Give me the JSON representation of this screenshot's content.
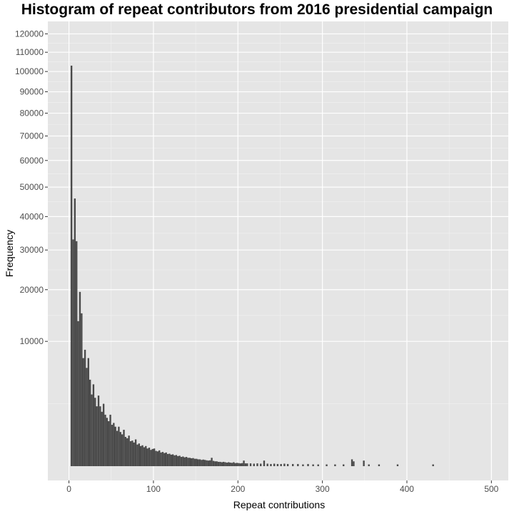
{
  "chart_data": {
    "type": "bar",
    "title": "Histogram of repeat contributors from 2016 presidential campaign",
    "xlabel": "Repeat contributions",
    "ylabel": "Frequency",
    "xlim": [
      -25,
      520
    ],
    "x_ticks": [
      0,
      100,
      200,
      300,
      400,
      500
    ],
    "y_scale": "sqrt",
    "ylim": [
      0,
      127000
    ],
    "y_ticks": [
      10000,
      20000,
      30000,
      40000,
      50000,
      60000,
      70000,
      80000,
      90000,
      100000,
      110000,
      120000
    ],
    "grid": true,
    "background": "#e5e5e5",
    "bar_color": "#4a4a4a",
    "bin_width": 2,
    "bins": [
      {
        "x": 3,
        "y": 103000
      },
      {
        "x": 5,
        "y": 33000
      },
      {
        "x": 7,
        "y": 46000
      },
      {
        "x": 9,
        "y": 32500
      },
      {
        "x": 11,
        "y": 13500
      },
      {
        "x": 13,
        "y": 19500
      },
      {
        "x": 15,
        "y": 15000
      },
      {
        "x": 17,
        "y": 7500
      },
      {
        "x": 19,
        "y": 8700
      },
      {
        "x": 21,
        "y": 6200
      },
      {
        "x": 23,
        "y": 7500
      },
      {
        "x": 25,
        "y": 4800
      },
      {
        "x": 27,
        "y": 3300
      },
      {
        "x": 29,
        "y": 4300
      },
      {
        "x": 31,
        "y": 3000
      },
      {
        "x": 33,
        "y": 2300
      },
      {
        "x": 35,
        "y": 3200
      },
      {
        "x": 37,
        "y": 2300
      },
      {
        "x": 39,
        "y": 1900
      },
      {
        "x": 41,
        "y": 2500
      },
      {
        "x": 43,
        "y": 1700
      },
      {
        "x": 45,
        "y": 1500
      },
      {
        "x": 47,
        "y": 1300
      },
      {
        "x": 49,
        "y": 1700
      },
      {
        "x": 51,
        "y": 1100
      },
      {
        "x": 53,
        "y": 1200
      },
      {
        "x": 55,
        "y": 1000
      },
      {
        "x": 57,
        "y": 800
      },
      {
        "x": 59,
        "y": 1000
      },
      {
        "x": 61,
        "y": 750
      },
      {
        "x": 63,
        "y": 650
      },
      {
        "x": 65,
        "y": 850
      },
      {
        "x": 67,
        "y": 550
      },
      {
        "x": 69,
        "y": 500
      },
      {
        "x": 71,
        "y": 600
      },
      {
        "x": 73,
        "y": 400
      },
      {
        "x": 75,
        "y": 420
      },
      {
        "x": 77,
        "y": 360
      },
      {
        "x": 79,
        "y": 460
      },
      {
        "x": 81,
        "y": 300
      },
      {
        "x": 83,
        "y": 330
      },
      {
        "x": 85,
        "y": 260
      },
      {
        "x": 87,
        "y": 280
      },
      {
        "x": 89,
        "y": 230
      },
      {
        "x": 91,
        "y": 260
      },
      {
        "x": 93,
        "y": 200
      },
      {
        "x": 95,
        "y": 220
      },
      {
        "x": 97,
        "y": 170
      },
      {
        "x": 99,
        "y": 190
      },
      {
        "x": 101,
        "y": 200
      },
      {
        "x": 103,
        "y": 150
      },
      {
        "x": 105,
        "y": 140
      },
      {
        "x": 107,
        "y": 160
      },
      {
        "x": 109,
        "y": 120
      },
      {
        "x": 111,
        "y": 130
      },
      {
        "x": 113,
        "y": 110
      },
      {
        "x": 115,
        "y": 120
      },
      {
        "x": 117,
        "y": 95
      },
      {
        "x": 119,
        "y": 100
      },
      {
        "x": 121,
        "y": 85
      },
      {
        "x": 123,
        "y": 90
      },
      {
        "x": 125,
        "y": 75
      },
      {
        "x": 127,
        "y": 80
      },
      {
        "x": 129,
        "y": 65
      },
      {
        "x": 131,
        "y": 70
      },
      {
        "x": 133,
        "y": 55
      },
      {
        "x": 135,
        "y": 60
      },
      {
        "x": 137,
        "y": 50
      },
      {
        "x": 139,
        "y": 55
      },
      {
        "x": 141,
        "y": 45
      },
      {
        "x": 143,
        "y": 45
      },
      {
        "x": 145,
        "y": 40
      },
      {
        "x": 147,
        "y": 42
      },
      {
        "x": 149,
        "y": 35
      },
      {
        "x": 151,
        "y": 35
      },
      {
        "x": 153,
        "y": 30
      },
      {
        "x": 155,
        "y": 30
      },
      {
        "x": 157,
        "y": 25
      },
      {
        "x": 159,
        "y": 28
      },
      {
        "x": 161,
        "y": 25
      },
      {
        "x": 163,
        "y": 22
      },
      {
        "x": 165,
        "y": 20
      },
      {
        "x": 167,
        "y": 22
      },
      {
        "x": 169,
        "y": 45
      },
      {
        "x": 171,
        "y": 18
      },
      {
        "x": 173,
        "y": 15
      },
      {
        "x": 175,
        "y": 15
      },
      {
        "x": 177,
        "y": 12
      },
      {
        "x": 179,
        "y": 12
      },
      {
        "x": 181,
        "y": 10
      },
      {
        "x": 183,
        "y": 12
      },
      {
        "x": 185,
        "y": 10
      },
      {
        "x": 187,
        "y": 8
      },
      {
        "x": 189,
        "y": 10
      },
      {
        "x": 191,
        "y": 8
      },
      {
        "x": 193,
        "y": 7
      },
      {
        "x": 195,
        "y": 10
      },
      {
        "x": 197,
        "y": 6
      },
      {
        "x": 199,
        "y": 7
      },
      {
        "x": 201,
        "y": 6
      },
      {
        "x": 203,
        "y": 5
      },
      {
        "x": 205,
        "y": 6
      },
      {
        "x": 207,
        "y": 20
      },
      {
        "x": 209,
        "y": 5
      },
      {
        "x": 211,
        "y": 5
      },
      {
        "x": 215,
        "y": 5
      },
      {
        "x": 219,
        "y": 4
      },
      {
        "x": 223,
        "y": 5
      },
      {
        "x": 227,
        "y": 4
      },
      {
        "x": 231,
        "y": 20
      },
      {
        "x": 235,
        "y": 4
      },
      {
        "x": 239,
        "y": 3
      },
      {
        "x": 243,
        "y": 4
      },
      {
        "x": 247,
        "y": 3
      },
      {
        "x": 251,
        "y": 3
      },
      {
        "x": 255,
        "y": 4
      },
      {
        "x": 259,
        "y": 3
      },
      {
        "x": 265,
        "y": 3
      },
      {
        "x": 271,
        "y": 3
      },
      {
        "x": 277,
        "y": 2
      },
      {
        "x": 283,
        "y": 3
      },
      {
        "x": 289,
        "y": 2
      },
      {
        "x": 295,
        "y": 2
      },
      {
        "x": 305,
        "y": 2
      },
      {
        "x": 315,
        "y": 2
      },
      {
        "x": 325,
        "y": 2
      },
      {
        "x": 335,
        "y": 30
      },
      {
        "x": 337,
        "y": 15
      },
      {
        "x": 349,
        "y": 20
      },
      {
        "x": 355,
        "y": 2
      },
      {
        "x": 367,
        "y": 2
      },
      {
        "x": 389,
        "y": 2
      },
      {
        "x": 431,
        "y": 2
      }
    ]
  }
}
